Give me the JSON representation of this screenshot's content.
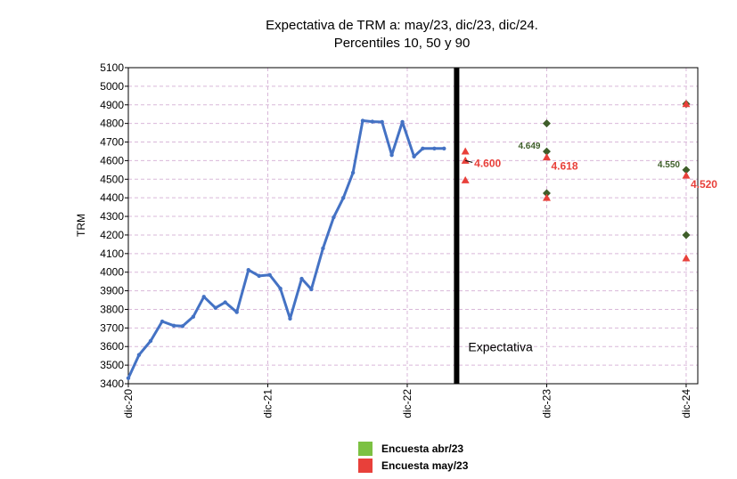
{
  "chart_data": {
    "type": "line",
    "title_lines": [
      "Expectativa de TRM a: may/23, dic/23, dic/24.",
      "Percentiles 10, 50 y 90"
    ],
    "ylabel": "TRM",
    "xlabel": "",
    "ylim": [
      3400,
      5100
    ],
    "yticks": [
      3400,
      3500,
      3600,
      3700,
      3800,
      3900,
      4000,
      4100,
      4200,
      4300,
      4400,
      4500,
      4600,
      4700,
      4800,
      4900,
      5000,
      5100
    ],
    "x_axis_range_months": [
      0,
      49
    ],
    "xticks": [
      {
        "label": "dic-20",
        "month": 0
      },
      {
        "label": "dic-21",
        "month": 12
      },
      {
        "label": "dic-22",
        "month": 24
      },
      {
        "label": "dic-23",
        "month": 36
      },
      {
        "label": "dic-24",
        "month": 48
      }
    ],
    "historical_series": {
      "name": "TRM",
      "color": "#4472c4",
      "months": [
        0,
        0.917,
        1.917,
        2.917,
        3.917,
        4.667,
        5.583,
        6.5,
        7.5,
        8.333,
        9.333,
        10.333,
        11.25,
        12.167,
        13.083,
        13.917,
        14.917,
        15.75,
        16.75,
        17.667,
        18.5,
        19.333,
        20.167,
        21,
        21.833,
        22.667,
        23.583,
        24.583,
        25.333,
        26.333,
        27.167
      ],
      "values": [
        3430,
        3555,
        3630,
        3735,
        3712,
        3710,
        3760,
        3868,
        3808,
        3838,
        3785,
        4012,
        3980,
        3985,
        3912,
        3750,
        3965,
        3908,
        4128,
        4295,
        4400,
        4535,
        4815,
        4810,
        4808,
        4630,
        4808,
        4622,
        4665,
        4665,
        4665
      ]
    },
    "forecast_divider": {
      "label": "Expectativa",
      "month": 28.25
    },
    "series": [
      {
        "name": "Encuesta abr/23",
        "color": "#3f5e2a",
        "legend_color": "#7cc142",
        "marker": "diamond",
        "points": [
          {
            "month": 36,
            "value": 4800
          },
          {
            "month": 36,
            "value": 4649,
            "label": "4.649"
          },
          {
            "month": 36,
            "value": 4425
          },
          {
            "month": 48,
            "value": 4905
          },
          {
            "month": 48,
            "value": 4550,
            "label": "4.550"
          },
          {
            "month": 48,
            "value": 4200
          }
        ]
      },
      {
        "name": "Encuesta may/23",
        "color": "#e8403a",
        "legend_color": "#e8403a",
        "marker": "triangle",
        "points": [
          {
            "month": 29,
            "value": 4650
          },
          {
            "month": 29,
            "value": 4600,
            "label": "4.600"
          },
          {
            "month": 29,
            "value": 4495
          },
          {
            "month": 36,
            "value": 4618,
            "label": "4.618"
          },
          {
            "month": 36,
            "value": 4400
          },
          {
            "month": 48,
            "value": 4905
          },
          {
            "month": 48,
            "value": 4520,
            "label": "4.520"
          },
          {
            "month": 48,
            "value": 4075
          }
        ]
      }
    ],
    "legend": [
      {
        "label": "Encuesta abr/23",
        "color": "#7cc142"
      },
      {
        "label": "Encuesta may/23",
        "color": "#e8403a"
      }
    ]
  }
}
